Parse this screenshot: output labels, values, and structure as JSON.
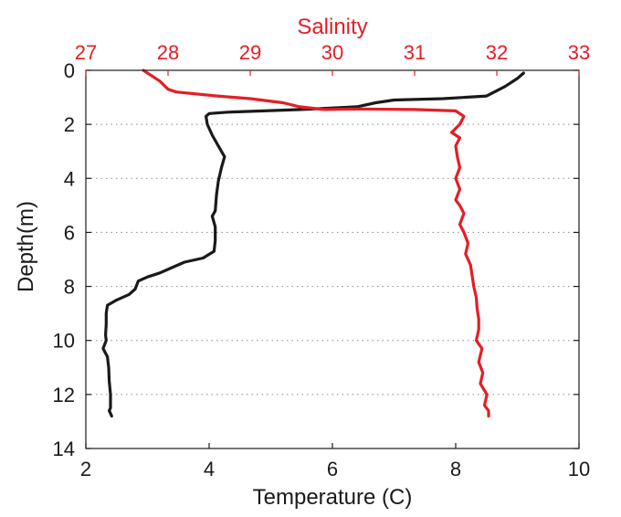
{
  "chart_data": {
    "type": "line",
    "title": "",
    "xlabel": "Temperature (C)",
    "x2label": "Salinity",
    "ylabel": "Depth(m)",
    "xlim": [
      2,
      10
    ],
    "x2lim": [
      27,
      33
    ],
    "ylim": [
      0,
      14
    ],
    "y_inverted": true,
    "xticks": [
      2,
      4,
      6,
      8,
      10
    ],
    "x2ticks": [
      27,
      28,
      29,
      30,
      31,
      32,
      33
    ],
    "yticks": [
      0,
      2,
      4,
      6,
      8,
      10,
      12,
      14
    ],
    "grid": "horizontal dotted",
    "colors": {
      "temperature": "#1a1a1a",
      "salinity": "#e41e26"
    },
    "series": [
      {
        "axis": "bottom",
        "points": [
          [
            9.1,
            0.1
          ],
          [
            9.0,
            0.3
          ],
          [
            8.8,
            0.6
          ],
          [
            8.5,
            0.95
          ],
          [
            7.8,
            1.05
          ],
          [
            7.0,
            1.1
          ],
          [
            6.7,
            1.2
          ],
          [
            6.4,
            1.35
          ],
          [
            5.5,
            1.45
          ],
          [
            4.3,
            1.55
          ],
          [
            4.0,
            1.6
          ],
          [
            3.95,
            1.7
          ],
          [
            3.97,
            2.0
          ],
          [
            4.05,
            2.4
          ],
          [
            4.15,
            2.8
          ],
          [
            4.25,
            3.2
          ],
          [
            4.2,
            3.6
          ],
          [
            4.15,
            4.1
          ],
          [
            4.12,
            4.6
          ],
          [
            4.1,
            5.2
          ],
          [
            4.05,
            5.4
          ],
          [
            4.1,
            5.8
          ],
          [
            4.1,
            6.3
          ],
          [
            4.08,
            6.7
          ],
          [
            3.9,
            6.95
          ],
          [
            3.6,
            7.1
          ],
          [
            3.4,
            7.3
          ],
          [
            3.2,
            7.5
          ],
          [
            3.0,
            7.65
          ],
          [
            2.85,
            7.8
          ],
          [
            2.8,
            8.1
          ],
          [
            2.7,
            8.3
          ],
          [
            2.5,
            8.5
          ],
          [
            2.35,
            8.7
          ],
          [
            2.33,
            9.0
          ],
          [
            2.33,
            9.4
          ],
          [
            2.32,
            9.8
          ],
          [
            2.33,
            10.0
          ],
          [
            2.28,
            10.3
          ],
          [
            2.35,
            10.6
          ],
          [
            2.37,
            11.0
          ],
          [
            2.38,
            11.5
          ],
          [
            2.4,
            12.0
          ],
          [
            2.4,
            12.5
          ],
          [
            2.38,
            12.6
          ],
          [
            2.42,
            12.8
          ]
        ]
      },
      {
        "axis": "top",
        "points": [
          [
            27.7,
            0.0
          ],
          [
            27.9,
            0.4
          ],
          [
            28.0,
            0.7
          ],
          [
            28.1,
            0.8
          ],
          [
            28.6,
            0.95
          ],
          [
            29.0,
            1.05
          ],
          [
            29.4,
            1.2
          ],
          [
            29.6,
            1.35
          ],
          [
            29.9,
            1.45
          ],
          [
            30.3,
            1.43
          ],
          [
            31.0,
            1.45
          ],
          [
            31.5,
            1.5
          ],
          [
            31.6,
            1.7
          ],
          [
            31.55,
            2.0
          ],
          [
            31.45,
            2.3
          ],
          [
            31.55,
            2.5
          ],
          [
            31.5,
            2.8
          ],
          [
            31.52,
            3.2
          ],
          [
            31.55,
            3.6
          ],
          [
            31.5,
            4.0
          ],
          [
            31.55,
            4.4
          ],
          [
            31.5,
            4.8
          ],
          [
            31.55,
            5.0
          ],
          [
            31.6,
            5.3
          ],
          [
            31.55,
            5.7
          ],
          [
            31.6,
            6.0
          ],
          [
            31.65,
            6.4
          ],
          [
            31.62,
            6.8
          ],
          [
            31.68,
            7.2
          ],
          [
            31.7,
            7.6
          ],
          [
            31.72,
            8.0
          ],
          [
            31.75,
            8.4
          ],
          [
            31.76,
            8.8
          ],
          [
            31.78,
            9.2
          ],
          [
            31.78,
            9.6
          ],
          [
            31.75,
            10.0
          ],
          [
            31.82,
            10.3
          ],
          [
            31.78,
            10.8
          ],
          [
            31.83,
            11.2
          ],
          [
            31.8,
            11.6
          ],
          [
            31.88,
            12.0
          ],
          [
            31.85,
            12.4
          ],
          [
            31.9,
            12.6
          ],
          [
            31.9,
            12.8
          ]
        ]
      }
    ]
  }
}
